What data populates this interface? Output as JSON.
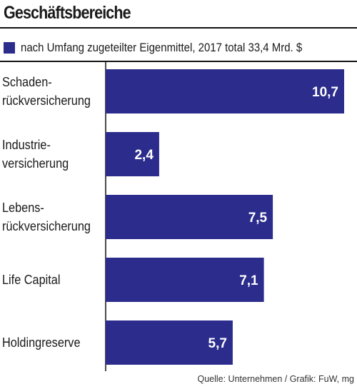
{
  "title": "Geschäftsbereiche",
  "legend": {
    "label": "nach Umfang zugeteilter Eigenmittel, 2017 total 33,4 Mrd. $",
    "color": "#2b2c8c"
  },
  "source": "Quelle: Unternehmen / Grafik: FuW, mg",
  "chart_data": {
    "type": "bar",
    "orientation": "horizontal",
    "title": "Geschäftsbereiche",
    "categories": [
      "Schaden-\nrückversicherung",
      "Industrie-\nversicherung",
      "Lebens-\nrückversicherung",
      "Life Capital",
      "Holdingreserve"
    ],
    "values": [
      10.7,
      2.4,
      7.5,
      7.1,
      5.7
    ],
    "value_labels": [
      "10,7",
      "2,4",
      "7,5",
      "7,1",
      "5,7"
    ],
    "xlim": [
      0,
      10.7
    ],
    "grid": false,
    "legend_position": "top-left",
    "bar_color": "#2b2c8c"
  }
}
